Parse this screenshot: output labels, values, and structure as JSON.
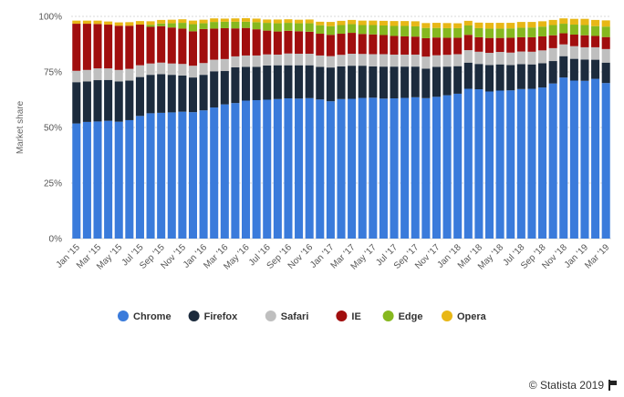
{
  "chart_data": {
    "type": "bar",
    "stacked": true,
    "ylabel": "Market share",
    "ylim": [
      0,
      100
    ],
    "yticks": [
      "0%",
      "25%",
      "50%",
      "75%",
      "100%"
    ],
    "grid": true,
    "legend_position": "bottom-center",
    "categories": [
      "Jan '15",
      "Feb '15",
      "Mar '15",
      "Apr '15",
      "May '15",
      "Jun '15",
      "Jul '15",
      "Aug '15",
      "Sep '15",
      "Oct '15",
      "Nov '15",
      "Dec '15",
      "Jan '16",
      "Feb '16",
      "Mar '16",
      "Apr '16",
      "May '16",
      "Jun '16",
      "Jul '16",
      "Aug '16",
      "Sep '16",
      "Oct '16",
      "Nov '16",
      "Dec '16",
      "Jan '17",
      "Feb '17",
      "Mar '17",
      "Apr '17",
      "May '17",
      "Jun '17",
      "Jul '17",
      "Aug '17",
      "Sep '17",
      "Oct '17",
      "Nov '17",
      "Dec '17",
      "Jan '18",
      "Feb '18",
      "Mar '18",
      "Apr '18",
      "May '18",
      "Jun '18",
      "Jul '18",
      "Aug '18",
      "Sep '18",
      "Oct '18",
      "Nov '18",
      "Dec '18",
      "Jan '19",
      "Feb '19",
      "Mar '19"
    ],
    "xtick_labels": [
      "Jan '15",
      "",
      "Mar '15",
      "",
      "May '15",
      "",
      "Jul '15",
      "",
      "Sep '15",
      "",
      "Nov '15",
      "",
      "Jan '16",
      "",
      "Mar '16",
      "",
      "May '16",
      "",
      "Jul '16",
      "",
      "Sep '16",
      "",
      "Nov '16",
      "",
      "Jan '17",
      "",
      "Mar '17",
      "",
      "May '17",
      "",
      "Jul '17",
      "",
      "Sep '17",
      "",
      "Nov '17",
      "",
      "Jan '18",
      "",
      "Mar '18",
      "",
      "May '18",
      "",
      "Jul '18",
      "",
      "Sep '18",
      "",
      "Nov '18",
      "",
      "Jan '19",
      "",
      "Mar '19"
    ],
    "series": [
      {
        "name": "Chrome",
        "color": "#3a7bdb",
        "values": [
          51.8,
          52.5,
          52.7,
          53.0,
          52.6,
          53.3,
          55.2,
          56.4,
          56.6,
          56.8,
          57.1,
          56.9,
          57.7,
          59.0,
          60.4,
          61.0,
          62.1,
          62.3,
          62.5,
          62.8,
          63.1,
          63.0,
          63.2,
          62.6,
          61.8,
          62.8,
          62.9,
          63.3,
          63.4,
          63.0,
          63.1,
          63.3,
          63.6,
          63.2,
          63.8,
          64.5,
          65.2,
          67.4,
          67.2,
          66.2,
          66.6,
          66.7,
          67.3,
          67.4,
          68.0,
          69.8,
          72.5,
          71.1,
          71.0,
          71.9,
          70.0
        ]
      },
      {
        "name": "Firefox",
        "color": "#1c2b3d",
        "values": [
          18.6,
          18.2,
          18.6,
          18.4,
          18.1,
          17.8,
          17.5,
          17.3,
          17.4,
          16.9,
          16.3,
          15.6,
          16.0,
          16.3,
          15.0,
          16.1,
          15.2,
          15.0,
          15.4,
          15.2,
          14.9,
          15.0,
          14.8,
          14.7,
          15.2,
          14.7,
          14.9,
          14.5,
          14.1,
          14.4,
          14.3,
          14.1,
          13.8,
          13.3,
          13.5,
          12.9,
          12.4,
          11.8,
          11.4,
          11.9,
          11.8,
          11.4,
          11.2,
          11.0,
          10.9,
          10.1,
          9.6,
          9.8,
          9.6,
          8.6,
          9.2
        ]
      },
      {
        "name": "Safari",
        "color": "#bfbfbf",
        "values": [
          5.1,
          5.2,
          5.3,
          5.2,
          5.2,
          5.3,
          5.3,
          5.1,
          5.2,
          5.1,
          5.2,
          5.3,
          5.3,
          5.2,
          5.4,
          4.9,
          5.1,
          5.1,
          5.0,
          4.8,
          5.3,
          5.2,
          5.2,
          5.1,
          5.1,
          5.2,
          5.4,
          5.3,
          5.5,
          5.6,
          5.4,
          5.4,
          5.4,
          5.4,
          5.2,
          5.3,
          5.4,
          5.6,
          5.5,
          5.5,
          5.6,
          5.6,
          5.7,
          5.7,
          5.8,
          5.8,
          5.3,
          5.7,
          5.5,
          5.6,
          6.1
        ]
      },
      {
        "name": "IE",
        "color": "#a10e0e",
        "values": [
          21.2,
          20.8,
          20.0,
          19.7,
          19.9,
          19.4,
          18.3,
          16.5,
          16.4,
          16.2,
          15.9,
          15.5,
          15.3,
          14.0,
          13.9,
          12.6,
          12.4,
          11.8,
          10.7,
          10.4,
          10.2,
          10.1,
          9.9,
          9.8,
          9.6,
          9.5,
          9.4,
          9.0,
          8.9,
          8.6,
          8.4,
          8.2,
          8.1,
          8.3,
          8.0,
          7.7,
          7.4,
          6.9,
          6.5,
          6.7,
          6.3,
          6.7,
          6.4,
          6.5,
          6.3,
          5.8,
          5.0,
          5.2,
          5.4,
          5.1,
          5.4
        ]
      },
      {
        "name": "Edge",
        "color": "#86b81f",
        "values": [
          0,
          0,
          0,
          0,
          0,
          0,
          0,
          0.9,
          1.2,
          1.9,
          2.6,
          3.2,
          2.6,
          3.0,
          2.9,
          3.0,
          2.8,
          3.2,
          3.5,
          3.7,
          3.6,
          3.6,
          3.8,
          3.8,
          3.9,
          3.9,
          3.9,
          4.0,
          4.2,
          4.3,
          4.5,
          4.7,
          4.6,
          4.6,
          4.3,
          4.3,
          4.3,
          4.2,
          4.1,
          4.2,
          4.2,
          4.2,
          4.3,
          4.4,
          4.4,
          4.6,
          4.3,
          4.5,
          4.6,
          4.4,
          4.7
        ]
      },
      {
        "name": "Opera",
        "color": "#e8b716",
        "values": [
          1.4,
          1.4,
          1.5,
          1.4,
          1.5,
          1.6,
          1.6,
          1.6,
          1.6,
          1.6,
          1.6,
          1.6,
          1.6,
          1.6,
          1.4,
          1.5,
          1.6,
          1.6,
          1.5,
          1.7,
          1.6,
          1.6,
          1.7,
          1.6,
          1.9,
          1.9,
          1.9,
          2.0,
          2.0,
          2.1,
          2.2,
          2.2,
          2.3,
          2.2,
          2.3,
          2.3,
          2.2,
          2.1,
          2.5,
          2.6,
          2.6,
          2.5,
          2.6,
          2.5,
          2.4,
          2.3,
          2.4,
          2.6,
          2.8,
          2.8,
          2.8
        ]
      }
    ]
  },
  "legend": {
    "items": [
      {
        "label": "Chrome",
        "color": "#3a7bdb"
      },
      {
        "label": "Firefox",
        "color": "#1c2b3d"
      },
      {
        "label": "Safari",
        "color": "#bfbfbf"
      },
      {
        "label": "IE",
        "color": "#a10e0e"
      },
      {
        "label": "Edge",
        "color": "#86b81f"
      },
      {
        "label": "Opera",
        "color": "#e8b716"
      }
    ]
  },
  "credit": {
    "text": "© Statista 2019",
    "icon": "flag-icon"
  }
}
